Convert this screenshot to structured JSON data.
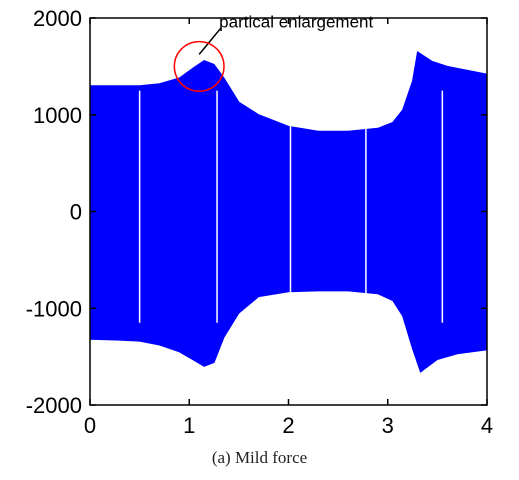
{
  "chart_data": {
    "type": "area",
    "caption": "(a) Mild force",
    "xlim": [
      0,
      4
    ],
    "ylim": [
      -2000,
      2000
    ],
    "x_ticks": [
      0,
      1,
      2,
      3,
      4
    ],
    "x_tick_labels": [
      "0",
      "1",
      "2",
      "3",
      "4"
    ],
    "y_ticks": [
      2000,
      1000,
      0,
      -1000,
      -2000
    ],
    "y_tick_labels": [
      "2000",
      "1000",
      "0",
      "-1000",
      "-2000"
    ],
    "grid": false,
    "series": [
      {
        "color": "#0000ff",
        "upper": [
          [
            0,
            1300
          ],
          [
            0.3,
            1300
          ],
          [
            0.5,
            1300
          ],
          [
            0.7,
            1320
          ],
          [
            0.9,
            1380
          ],
          [
            1.05,
            1490
          ],
          [
            1.15,
            1560
          ],
          [
            1.25,
            1520
          ],
          [
            1.35,
            1380
          ],
          [
            1.5,
            1130
          ],
          [
            1.7,
            1000
          ],
          [
            2.0,
            880
          ],
          [
            2.3,
            830
          ],
          [
            2.6,
            830
          ],
          [
            2.9,
            860
          ],
          [
            3.05,
            920
          ],
          [
            3.15,
            1050
          ],
          [
            3.25,
            1350
          ],
          [
            3.3,
            1650
          ],
          [
            3.45,
            1550
          ],
          [
            3.6,
            1500
          ],
          [
            4.0,
            1420
          ]
        ],
        "lower": [
          [
            0,
            -1320
          ],
          [
            0.3,
            -1330
          ],
          [
            0.5,
            -1340
          ],
          [
            0.7,
            -1380
          ],
          [
            0.9,
            -1450
          ],
          [
            1.05,
            -1540
          ],
          [
            1.15,
            -1600
          ],
          [
            1.25,
            -1560
          ],
          [
            1.35,
            -1300
          ],
          [
            1.5,
            -1050
          ],
          [
            1.7,
            -880
          ],
          [
            2.0,
            -830
          ],
          [
            2.3,
            -820
          ],
          [
            2.6,
            -820
          ],
          [
            2.9,
            -850
          ],
          [
            3.05,
            -920
          ],
          [
            3.15,
            -1080
          ],
          [
            3.25,
            -1420
          ],
          [
            3.33,
            -1660
          ],
          [
            3.5,
            -1530
          ],
          [
            3.7,
            -1470
          ],
          [
            4.0,
            -1430
          ]
        ]
      }
    ],
    "gaps_x": [
      0.5,
      1.28,
      2.02,
      2.78,
      3.55
    ],
    "annotation": {
      "text": "partical enlargement",
      "circle_center": [
        1.1,
        1500
      ],
      "circle_radius_x": 0.25,
      "circle_color": "#ff0000"
    }
  }
}
